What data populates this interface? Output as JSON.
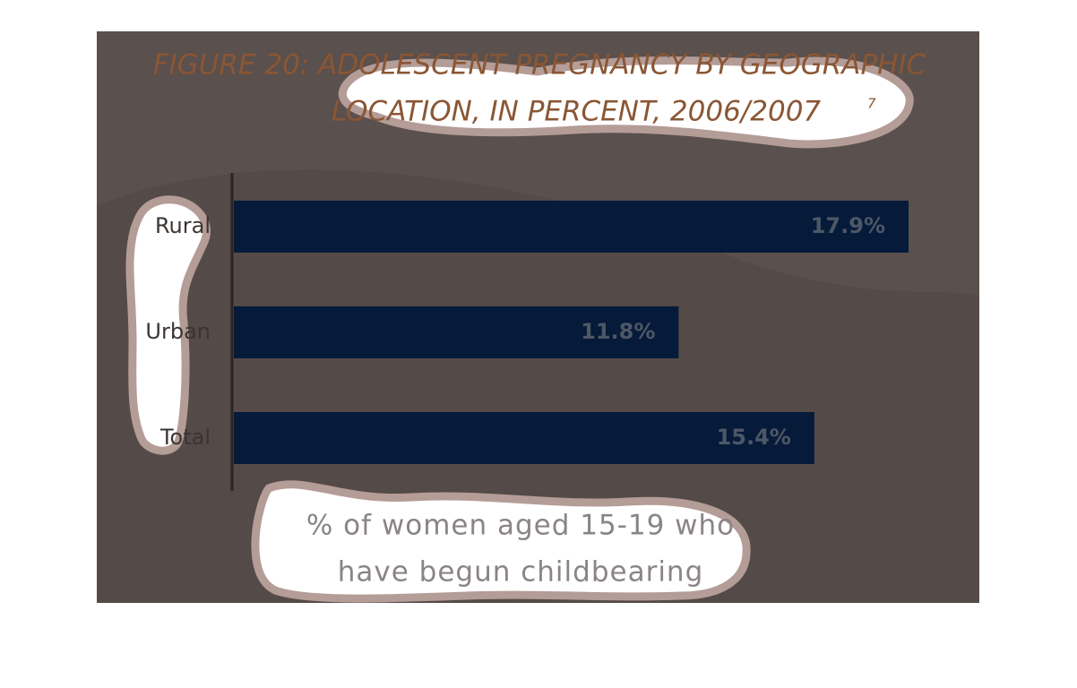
{
  "chart_data": {
    "type": "bar",
    "orientation": "horizontal",
    "title": [
      "FIGURE 20: ADOLESCENT PREGNANCY BY GEOGRAPHIC",
      "LOCATION, IN PERCENT, 2006/2007"
    ],
    "title_note": "7",
    "categories": [
      "Rural",
      "Urban",
      "Total"
    ],
    "values": [
      17.9,
      11.8,
      15.4
    ],
    "value_labels": [
      "17.9%",
      "11.8%",
      "15.4%"
    ],
    "color": "#061a3a",
    "x_label": [
      "% of women aged 15-19 who",
      "have begun childbearing"
    ]
  }
}
